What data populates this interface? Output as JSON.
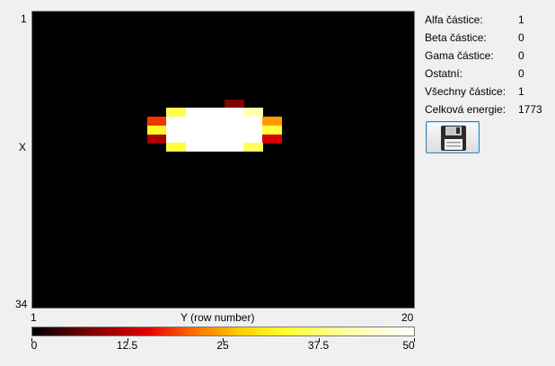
{
  "axes": {
    "y_top": "1",
    "y_bottom": "34",
    "y_title": "X",
    "x_left": "1",
    "x_right": "20",
    "x_title": "Y (row number)"
  },
  "colorbar": {
    "ticks": [
      "0",
      "12.5",
      "25",
      "37.5",
      "50"
    ],
    "tick_values": [
      0,
      12.5,
      25,
      37.5,
      50
    ],
    "range": [
      0,
      50
    ]
  },
  "stats": [
    {
      "label": "Alfa částice:",
      "value": "1"
    },
    {
      "label": "Beta částice:",
      "value": "0"
    },
    {
      "label": "Gama částice:",
      "value": "0"
    },
    {
      "label": "Ostatní:",
      "value": "0"
    },
    {
      "label": "Všechny částice:",
      "value": "1"
    },
    {
      "label": "Celková energie:",
      "value": "1773"
    }
  ],
  "save_button": {
    "icon": "floppy-disk-icon"
  },
  "chart_data": {
    "type": "heatmap",
    "x_range": [
      1,
      20
    ],
    "y_range": [
      1,
      34
    ],
    "value_range": [
      0,
      50
    ],
    "xlabel": "Y (row number)",
    "ylabel": "X",
    "cells": [
      {
        "col": 11,
        "row": 11,
        "value": 8
      },
      {
        "col": 8,
        "row": 12,
        "value": 35
      },
      {
        "col": 9,
        "row": 12,
        "value": 50
      },
      {
        "col": 10,
        "row": 12,
        "value": 50
      },
      {
        "col": 11,
        "row": 12,
        "value": 50
      },
      {
        "col": 12,
        "row": 12,
        "value": 42
      },
      {
        "col": 7,
        "row": 13,
        "value": 18
      },
      {
        "col": 8,
        "row": 13,
        "value": 50
      },
      {
        "col": 9,
        "row": 13,
        "value": 50
      },
      {
        "col": 10,
        "row": 13,
        "value": 50
      },
      {
        "col": 11,
        "row": 13,
        "value": 50
      },
      {
        "col": 12,
        "row": 13,
        "value": 50
      },
      {
        "col": 13,
        "row": 13,
        "value": 24
      },
      {
        "col": 7,
        "row": 14,
        "value": 32
      },
      {
        "col": 8,
        "row": 14,
        "value": 50
      },
      {
        "col": 9,
        "row": 14,
        "value": 50
      },
      {
        "col": 10,
        "row": 14,
        "value": 50
      },
      {
        "col": 11,
        "row": 14,
        "value": 50
      },
      {
        "col": 12,
        "row": 14,
        "value": 50
      },
      {
        "col": 13,
        "row": 14,
        "value": 34
      },
      {
        "col": 7,
        "row": 15,
        "value": 11
      },
      {
        "col": 8,
        "row": 15,
        "value": 50
      },
      {
        "col": 9,
        "row": 15,
        "value": 50
      },
      {
        "col": 10,
        "row": 15,
        "value": 50
      },
      {
        "col": 11,
        "row": 15,
        "value": 50
      },
      {
        "col": 12,
        "row": 15,
        "value": 50
      },
      {
        "col": 13,
        "row": 15,
        "value": 14
      },
      {
        "col": 8,
        "row": 16,
        "value": 34
      },
      {
        "col": 9,
        "row": 16,
        "value": 50
      },
      {
        "col": 10,
        "row": 16,
        "value": 50
      },
      {
        "col": 11,
        "row": 16,
        "value": 50
      },
      {
        "col": 12,
        "row": 16,
        "value": 36
      }
    ]
  }
}
